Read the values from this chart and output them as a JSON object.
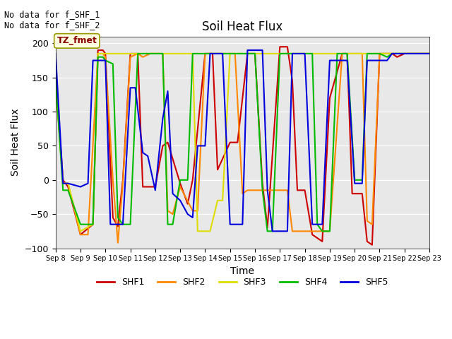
{
  "title": "Soil Heat Flux",
  "ylabel": "Soil Heat Flux",
  "xlabel": "Time",
  "ylim": [
    -100,
    210
  ],
  "yticks": [
    -100,
    -50,
    0,
    50,
    100,
    150,
    200
  ],
  "annotation_text": "No data for f_SHF_1\nNo data for f_SHF_2",
  "tz_label": "TZ_fmet",
  "colors": {
    "SHF1": "#cc0000",
    "SHF2": "#ff8800",
    "SHF3": "#dddd00",
    "SHF4": "#00bb00",
    "SHF5": "#0000dd"
  },
  "legend_labels": [
    "SHF1",
    "SHF2",
    "SHF3",
    "SHF4",
    "SHF5"
  ],
  "plot_bg": "#e8e8e8",
  "fig_bg": "#ffffff",
  "SHF1": [
    [
      8.0,
      150
    ],
    [
      8.3,
      0
    ],
    [
      8.5,
      -10
    ],
    [
      9.0,
      -80
    ],
    [
      9.5,
      -65
    ],
    [
      9.7,
      190
    ],
    [
      9.9,
      190
    ],
    [
      10.0,
      185
    ],
    [
      10.3,
      -55
    ],
    [
      10.5,
      -68
    ],
    [
      10.7,
      0
    ],
    [
      11.0,
      185
    ],
    [
      11.3,
      185
    ],
    [
      11.5,
      -10
    ],
    [
      12.0,
      -10
    ],
    [
      12.3,
      50
    ],
    [
      12.5,
      55
    ],
    [
      13.0,
      -5
    ],
    [
      13.3,
      -35
    ],
    [
      13.5,
      0
    ],
    [
      14.0,
      185
    ],
    [
      14.3,
      185
    ],
    [
      14.5,
      15
    ],
    [
      15.0,
      55
    ],
    [
      15.3,
      55
    ],
    [
      15.7,
      185
    ],
    [
      16.0,
      185
    ],
    [
      16.3,
      -5
    ],
    [
      16.5,
      -70
    ],
    [
      17.0,
      195
    ],
    [
      17.3,
      195
    ],
    [
      17.5,
      145
    ],
    [
      17.7,
      -15
    ],
    [
      18.0,
      -15
    ],
    [
      18.3,
      -80
    ],
    [
      18.7,
      -90
    ],
    [
      19.0,
      120
    ],
    [
      19.5,
      185
    ],
    [
      19.7,
      185
    ],
    [
      19.9,
      -20
    ],
    [
      20.3,
      -20
    ],
    [
      20.5,
      -90
    ],
    [
      20.7,
      -95
    ],
    [
      21.0,
      185
    ],
    [
      21.3,
      185
    ],
    [
      21.5,
      185
    ],
    [
      21.7,
      180
    ],
    [
      22.0,
      185
    ],
    [
      22.3,
      185
    ],
    [
      22.5,
      185
    ],
    [
      23.0,
      185
    ]
  ],
  "SHF2": [
    [
      8.0,
      145
    ],
    [
      8.3,
      -5
    ],
    [
      8.5,
      -5
    ],
    [
      9.0,
      -80
    ],
    [
      9.3,
      -80
    ],
    [
      9.7,
      185
    ],
    [
      9.9,
      185
    ],
    [
      10.0,
      180
    ],
    [
      10.3,
      0
    ],
    [
      10.5,
      -92
    ],
    [
      10.7,
      -5
    ],
    [
      11.0,
      180
    ],
    [
      11.3,
      185
    ],
    [
      11.5,
      180
    ],
    [
      11.8,
      185
    ],
    [
      12.0,
      185
    ],
    [
      12.3,
      185
    ],
    [
      12.5,
      -45
    ],
    [
      12.7,
      -50
    ],
    [
      13.0,
      -10
    ],
    [
      13.5,
      -45
    ],
    [
      13.7,
      -45
    ],
    [
      14.0,
      185
    ],
    [
      14.3,
      185
    ],
    [
      14.5,
      185
    ],
    [
      15.0,
      185
    ],
    [
      15.2,
      185
    ],
    [
      15.5,
      -20
    ],
    [
      15.7,
      -15
    ],
    [
      16.0,
      -15
    ],
    [
      16.3,
      -15
    ],
    [
      16.5,
      -15
    ],
    [
      17.0,
      -15
    ],
    [
      17.3,
      -15
    ],
    [
      17.5,
      -75
    ],
    [
      17.7,
      -75
    ],
    [
      18.0,
      -75
    ],
    [
      18.3,
      -75
    ],
    [
      18.7,
      -75
    ],
    [
      19.0,
      -75
    ],
    [
      19.5,
      185
    ],
    [
      19.7,
      185
    ],
    [
      20.0,
      185
    ],
    [
      20.3,
      185
    ],
    [
      20.5,
      -60
    ],
    [
      20.7,
      -65
    ],
    [
      21.0,
      185
    ],
    [
      21.3,
      185
    ],
    [
      21.5,
      185
    ],
    [
      21.7,
      185
    ],
    [
      22.0,
      185
    ],
    [
      22.3,
      185
    ],
    [
      22.5,
      185
    ],
    [
      23.0,
      185
    ]
  ],
  "SHF3": [
    [
      8.0,
      145
    ],
    [
      8.3,
      -5
    ],
    [
      8.5,
      -5
    ],
    [
      9.0,
      -75
    ],
    [
      9.5,
      -65
    ],
    [
      9.7,
      185
    ],
    [
      9.9,
      185
    ],
    [
      10.0,
      185
    ],
    [
      10.3,
      185
    ],
    [
      10.5,
      185
    ],
    [
      10.7,
      185
    ],
    [
      11.0,
      185
    ],
    [
      11.2,
      185
    ],
    [
      11.5,
      185
    ],
    [
      11.7,
      185
    ],
    [
      12.0,
      185
    ],
    [
      12.2,
      185
    ],
    [
      12.5,
      185
    ],
    [
      12.7,
      185
    ],
    [
      13.0,
      185
    ],
    [
      13.3,
      185
    ],
    [
      13.5,
      185
    ],
    [
      13.7,
      -75
    ],
    [
      14.0,
      -75
    ],
    [
      14.2,
      -75
    ],
    [
      14.5,
      -30
    ],
    [
      14.7,
      -30
    ],
    [
      15.0,
      185
    ],
    [
      15.3,
      185
    ],
    [
      15.5,
      185
    ],
    [
      15.7,
      185
    ],
    [
      16.0,
      185
    ],
    [
      16.3,
      185
    ],
    [
      16.5,
      185
    ],
    [
      16.7,
      185
    ],
    [
      17.0,
      185
    ],
    [
      17.3,
      185
    ],
    [
      17.5,
      185
    ],
    [
      17.7,
      185
    ],
    [
      18.0,
      185
    ],
    [
      18.3,
      185
    ],
    [
      18.5,
      185
    ],
    [
      18.7,
      185
    ],
    [
      19.0,
      185
    ],
    [
      19.3,
      185
    ],
    [
      19.5,
      185
    ],
    [
      19.7,
      185
    ],
    [
      20.0,
      185
    ],
    [
      20.3,
      185
    ],
    [
      20.5,
      185
    ],
    [
      20.7,
      185
    ],
    [
      21.0,
      185
    ],
    [
      21.3,
      185
    ],
    [
      21.5,
      185
    ],
    [
      21.7,
      185
    ],
    [
      22.0,
      185
    ],
    [
      22.3,
      185
    ],
    [
      22.5,
      185
    ],
    [
      23.0,
      185
    ]
  ],
  "SHF4": [
    [
      8.0,
      150
    ],
    [
      8.3,
      -15
    ],
    [
      8.5,
      -15
    ],
    [
      9.0,
      -65
    ],
    [
      9.5,
      -65
    ],
    [
      9.7,
      180
    ],
    [
      9.9,
      180
    ],
    [
      10.0,
      175
    ],
    [
      10.3,
      170
    ],
    [
      10.5,
      -55
    ],
    [
      10.7,
      -65
    ],
    [
      11.0,
      -65
    ],
    [
      11.3,
      185
    ],
    [
      11.5,
      185
    ],
    [
      11.7,
      185
    ],
    [
      12.0,
      185
    ],
    [
      12.3,
      185
    ],
    [
      12.5,
      -65
    ],
    [
      12.7,
      -65
    ],
    [
      13.0,
      0
    ],
    [
      13.3,
      0
    ],
    [
      13.5,
      185
    ],
    [
      13.7,
      185
    ],
    [
      14.0,
      185
    ],
    [
      14.3,
      185
    ],
    [
      14.5,
      185
    ],
    [
      14.7,
      185
    ],
    [
      15.0,
      185
    ],
    [
      15.3,
      185
    ],
    [
      15.5,
      185
    ],
    [
      15.7,
      185
    ],
    [
      16.0,
      185
    ],
    [
      16.3,
      -15
    ],
    [
      16.5,
      -75
    ],
    [
      16.7,
      -75
    ],
    [
      17.0,
      185
    ],
    [
      17.3,
      185
    ],
    [
      17.5,
      185
    ],
    [
      17.7,
      185
    ],
    [
      18.0,
      185
    ],
    [
      18.3,
      185
    ],
    [
      18.5,
      -65
    ],
    [
      18.7,
      -75
    ],
    [
      19.0,
      -75
    ],
    [
      19.3,
      185
    ],
    [
      19.5,
      185
    ],
    [
      19.7,
      185
    ],
    [
      20.0,
      0
    ],
    [
      20.3,
      0
    ],
    [
      20.5,
      185
    ],
    [
      20.7,
      185
    ],
    [
      21.0,
      185
    ],
    [
      21.3,
      180
    ],
    [
      21.5,
      185
    ],
    [
      21.7,
      185
    ],
    [
      22.0,
      185
    ],
    [
      22.3,
      185
    ],
    [
      22.5,
      185
    ],
    [
      23.0,
      185
    ]
  ],
  "SHF5": [
    [
      8.0,
      185
    ],
    [
      8.3,
      -5
    ],
    [
      8.5,
      -5
    ],
    [
      9.0,
      -10
    ],
    [
      9.3,
      -5
    ],
    [
      9.5,
      175
    ],
    [
      9.7,
      175
    ],
    [
      9.9,
      175
    ],
    [
      10.0,
      175
    ],
    [
      10.2,
      -65
    ],
    [
      10.3,
      -65
    ],
    [
      10.5,
      -65
    ],
    [
      10.7,
      -65
    ],
    [
      11.0,
      135
    ],
    [
      11.2,
      135
    ],
    [
      11.5,
      40
    ],
    [
      11.7,
      35
    ],
    [
      12.0,
      -15
    ],
    [
      12.3,
      90
    ],
    [
      12.5,
      130
    ],
    [
      12.7,
      -20
    ],
    [
      13.0,
      -30
    ],
    [
      13.3,
      -50
    ],
    [
      13.5,
      -55
    ],
    [
      13.7,
      50
    ],
    [
      14.0,
      50
    ],
    [
      14.2,
      185
    ],
    [
      14.5,
      185
    ],
    [
      14.7,
      185
    ],
    [
      15.0,
      -65
    ],
    [
      15.3,
      -65
    ],
    [
      15.5,
      -65
    ],
    [
      15.7,
      190
    ],
    [
      16.0,
      190
    ],
    [
      16.3,
      190
    ],
    [
      16.5,
      -15
    ],
    [
      16.7,
      -75
    ],
    [
      17.0,
      -75
    ],
    [
      17.3,
      -75
    ],
    [
      17.5,
      185
    ],
    [
      17.7,
      185
    ],
    [
      18.0,
      185
    ],
    [
      18.3,
      -65
    ],
    [
      18.5,
      -65
    ],
    [
      18.7,
      -65
    ],
    [
      19.0,
      175
    ],
    [
      19.3,
      175
    ],
    [
      19.5,
      175
    ],
    [
      19.7,
      175
    ],
    [
      20.0,
      -5
    ],
    [
      20.3,
      -5
    ],
    [
      20.5,
      175
    ],
    [
      20.7,
      175
    ],
    [
      21.0,
      175
    ],
    [
      21.3,
      175
    ],
    [
      21.5,
      185
    ],
    [
      21.7,
      185
    ],
    [
      22.0,
      185
    ],
    [
      22.3,
      185
    ],
    [
      22.5,
      185
    ],
    [
      23.0,
      185
    ]
  ],
  "xtick_positions": [
    8,
    9,
    10,
    11,
    12,
    13,
    14,
    15,
    16,
    17,
    18,
    19,
    20,
    21,
    22,
    23
  ],
  "xtick_labels": [
    "Sep 8",
    "Sep 9",
    "Sep 10",
    "Sep 11",
    "Sep 12",
    "Sep 13",
    "Sep 14",
    "Sep 15",
    "Sep 16",
    "Sep 17",
    "Sep 18",
    "Sep 19",
    "Sep 20",
    "Sep 21",
    "Sep 22",
    "Sep 23"
  ]
}
